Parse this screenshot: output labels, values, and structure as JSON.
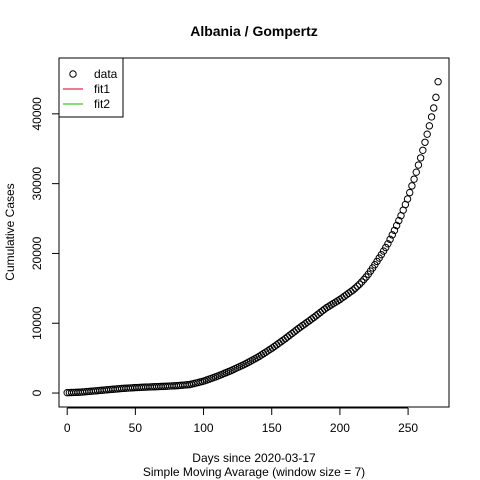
{
  "chart_data": {
    "type": "scatter",
    "title": "Albania / Gompertz",
    "xlabel": "Days since 2020-03-17",
    "xlabel_sub": "Simple Moving Avarage (window size = 7)",
    "ylabel": "Cumulative Cases",
    "xlim": [
      -6,
      280
    ],
    "ylim": [
      -2000,
      48000
    ],
    "x_ticks": [
      0,
      50,
      100,
      150,
      200,
      250
    ],
    "y_ticks": [
      0,
      10000,
      20000,
      30000,
      40000
    ],
    "legend_position": "top-left",
    "legend": [
      {
        "label": "data",
        "symbol": "circle",
        "color": "#000000"
      },
      {
        "label": "fit1",
        "symbol": "line",
        "color": "#DF536B"
      },
      {
        "label": "fit2",
        "symbol": "line",
        "color": "#61D04F"
      }
    ],
    "series": [
      {
        "name": "data",
        "marker": "open-circle",
        "color": "#000000",
        "keypoints": [
          [
            0,
            50
          ],
          [
            10,
            130
          ],
          [
            20,
            300
          ],
          [
            30,
            480
          ],
          [
            40,
            650
          ],
          [
            50,
            780
          ],
          [
            60,
            870
          ],
          [
            70,
            950
          ],
          [
            80,
            1050
          ],
          [
            90,
            1220
          ],
          [
            100,
            1700
          ],
          [
            110,
            2400
          ],
          [
            120,
            3200
          ],
          [
            130,
            4100
          ],
          [
            140,
            5150
          ],
          [
            150,
            6400
          ],
          [
            160,
            7800
          ],
          [
            170,
            9300
          ],
          [
            180,
            10700
          ],
          [
            190,
            12200
          ],
          [
            200,
            13400
          ],
          [
            210,
            14800
          ],
          [
            215,
            15700
          ],
          [
            220,
            16800
          ],
          [
            225,
            18200
          ],
          [
            230,
            19700
          ],
          [
            235,
            21300
          ],
          [
            240,
            23300
          ],
          [
            245,
            25500
          ],
          [
            250,
            28000
          ],
          [
            255,
            31000
          ],
          [
            260,
            34200
          ],
          [
            265,
            37800
          ],
          [
            270,
            41800
          ],
          [
            273,
            46000
          ]
        ],
        "x_start": 0,
        "x_end": 273,
        "x_step": 1.6
      }
    ]
  }
}
